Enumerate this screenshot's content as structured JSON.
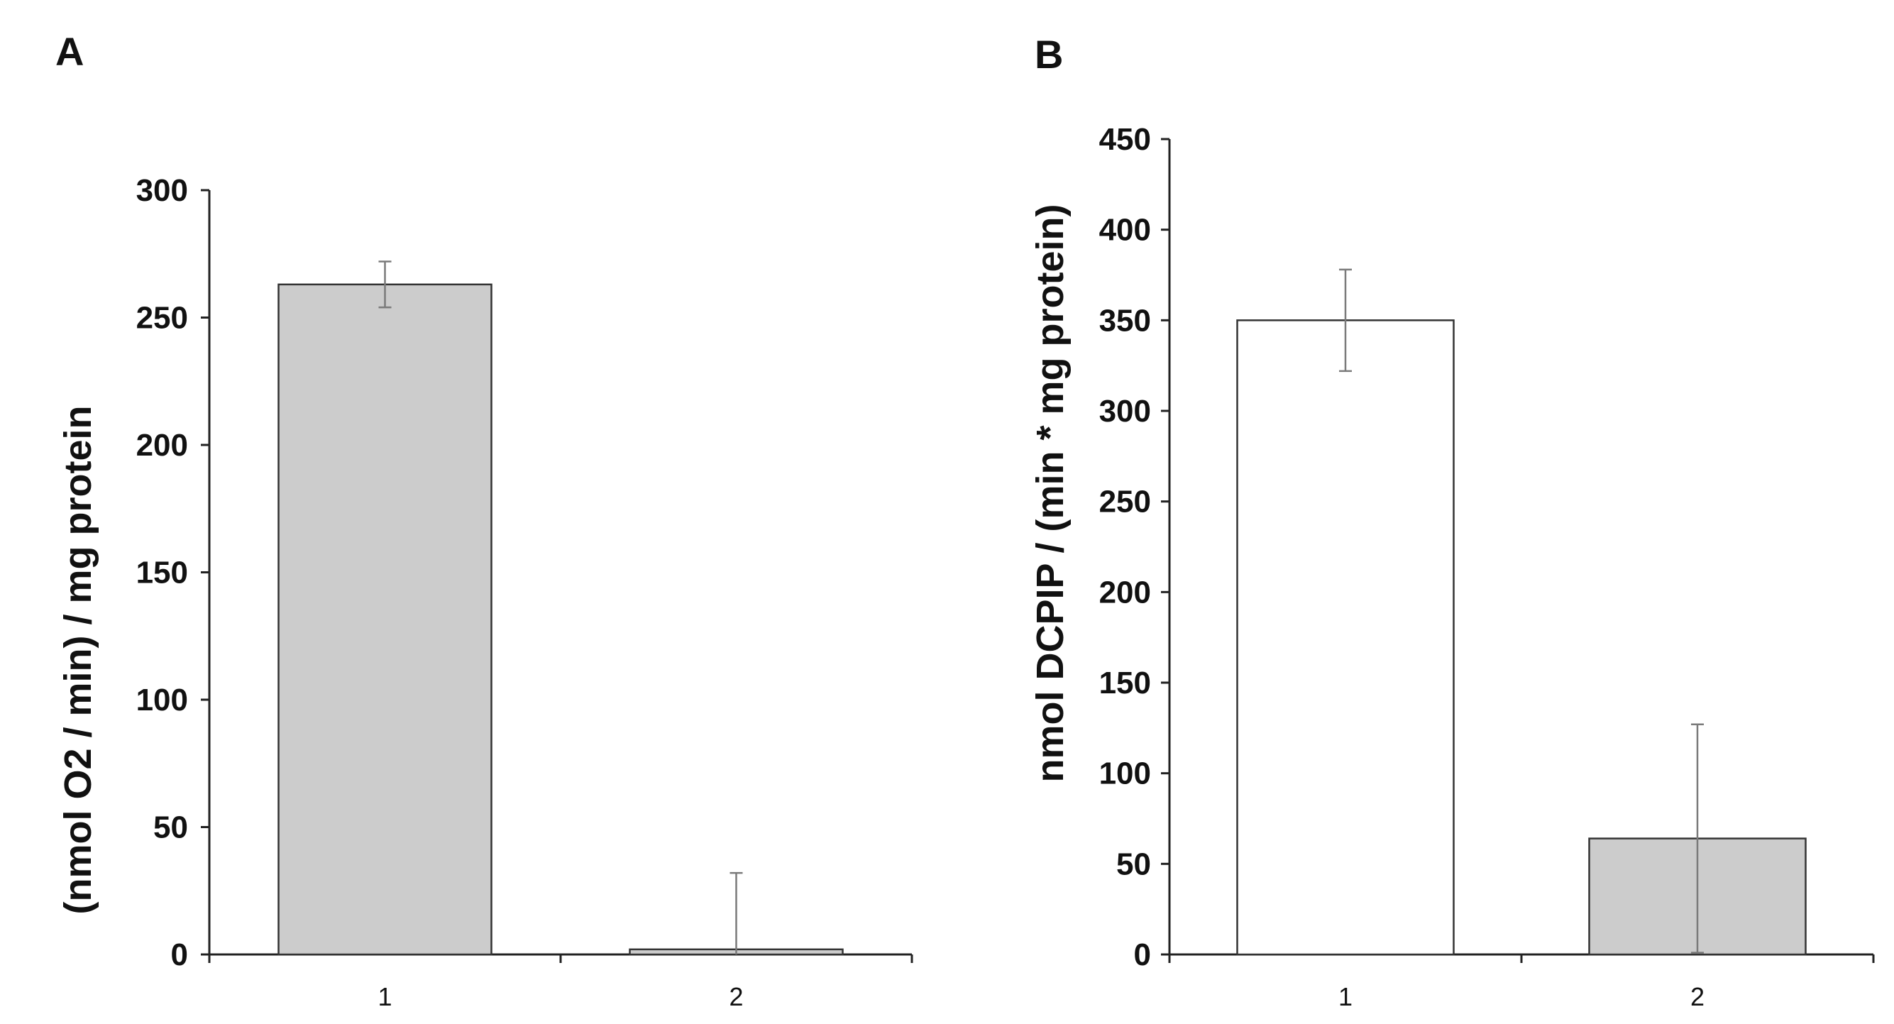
{
  "chart_data": [
    {
      "type": "bar",
      "panel": "A",
      "categories": [
        "1",
        "2"
      ],
      "values": [
        263,
        2
      ],
      "errors": [
        9,
        30
      ],
      "bar_colors": [
        "#cccccc",
        "#cccccc"
      ],
      "ylabel": "(nmol O2 / min) / mg protein",
      "xlabel": "",
      "ylim": [
        0,
        300
      ],
      "yticks": [
        0,
        50,
        100,
        150,
        200,
        250,
        300
      ],
      "grid": false
    },
    {
      "type": "bar",
      "panel": "B",
      "categories": [
        "1",
        "2"
      ],
      "values": [
        350,
        64
      ],
      "errors": [
        28,
        63
      ],
      "bar_colors": [
        "#ffffff",
        "#cccccc"
      ],
      "ylabel": "nmol DCPIP  / (min * mg protein)",
      "xlabel": "",
      "ylim": [
        0,
        450
      ],
      "yticks": [
        0,
        50,
        100,
        150,
        200,
        250,
        300,
        350,
        400,
        450
      ],
      "grid": false
    }
  ]
}
